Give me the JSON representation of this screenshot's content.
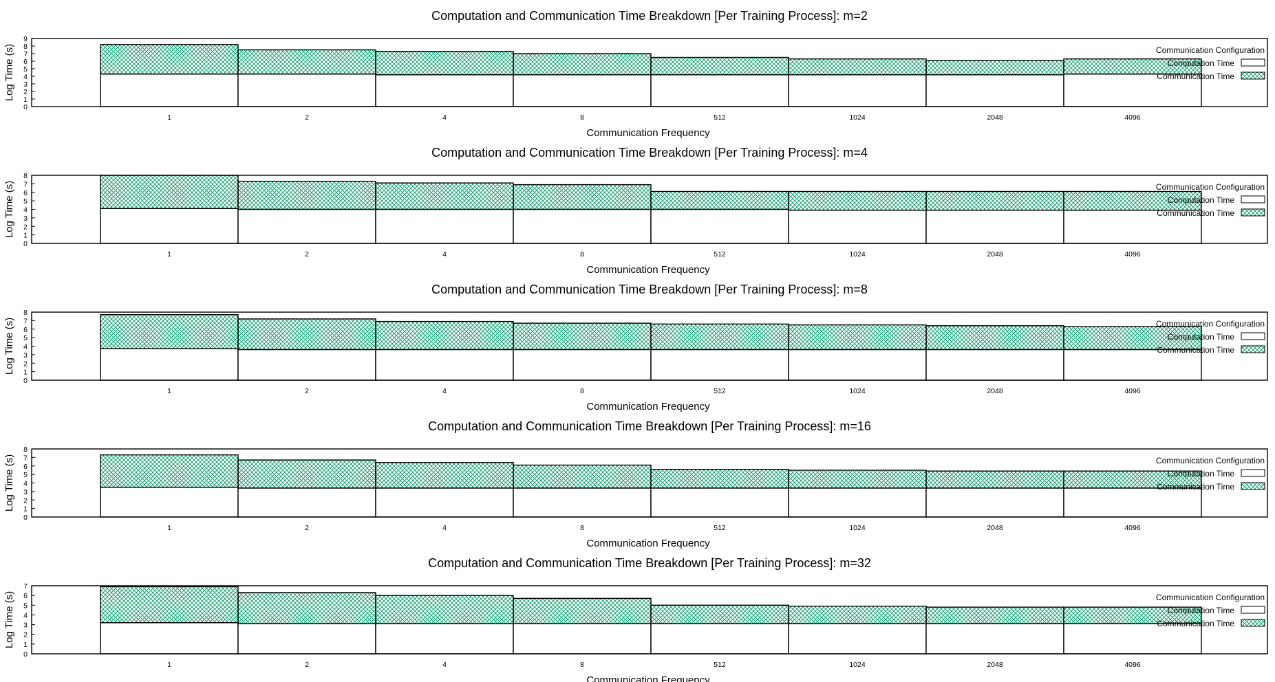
{
  "colors": {
    "communication_fill": "#009966",
    "computation_fill": "#ffffff",
    "stroke": "#000000"
  },
  "chart_data": [
    {
      "type": "bar",
      "stacked": true,
      "title": "Computation and Communication Time Breakdown [Per Training Process]: m=2",
      "xlabel": "Communication Frequency",
      "ylabel": "Log Time (s)",
      "ylim": [
        0,
        9
      ],
      "yticks": [
        0,
        1,
        2,
        3,
        4,
        5,
        6,
        7,
        8,
        9
      ],
      "categories": [
        "1",
        "2",
        "4",
        "8",
        "512",
        "1024",
        "2048",
        "4096"
      ],
      "legend_title": "Communication Configuration",
      "legend_position": "top-right",
      "series": [
        {
          "name": "Computation Time",
          "pattern": "solid",
          "values": [
            4.3,
            4.3,
            4.2,
            4.2,
            4.2,
            4.2,
            4.2,
            4.3
          ]
        },
        {
          "name": "Communication Time",
          "pattern": "crosshatch",
          "values": [
            3.9,
            3.2,
            3.1,
            2.8,
            2.3,
            2.1,
            1.9,
            2.0
          ]
        }
      ]
    },
    {
      "type": "bar",
      "stacked": true,
      "title": "Computation and Communication Time Breakdown [Per Training Process]: m=4",
      "xlabel": "Communication Frequency",
      "ylabel": "Log Time (s)",
      "ylim": [
        0,
        8
      ],
      "yticks": [
        0,
        1,
        2,
        3,
        4,
        5,
        6,
        7,
        8
      ],
      "categories": [
        "1",
        "2",
        "4",
        "8",
        "512",
        "1024",
        "2048",
        "4096"
      ],
      "legend_title": "Communication Configuration",
      "legend_position": "top-right",
      "series": [
        {
          "name": "Computation Time",
          "pattern": "solid",
          "values": [
            4.1,
            4.0,
            4.0,
            4.0,
            4.0,
            3.9,
            3.9,
            3.9
          ]
        },
        {
          "name": "Communication Time",
          "pattern": "crosshatch",
          "values": [
            3.9,
            3.3,
            3.1,
            2.9,
            2.1,
            2.2,
            2.2,
            2.2
          ]
        }
      ]
    },
    {
      "type": "bar",
      "stacked": true,
      "title": "Computation and Communication Time Breakdown [Per Training Process]: m=8",
      "xlabel": "Communication Frequency",
      "ylabel": "Log Time (s)",
      "ylim": [
        0,
        8
      ],
      "yticks": [
        0,
        1,
        2,
        3,
        4,
        5,
        6,
        7,
        8
      ],
      "categories": [
        "1",
        "2",
        "4",
        "8",
        "512",
        "1024",
        "2048",
        "4096"
      ],
      "legend_title": "Communication Configuration",
      "legend_position": "top-right",
      "series": [
        {
          "name": "Computation Time",
          "pattern": "solid",
          "values": [
            3.7,
            3.6,
            3.6,
            3.6,
            3.6,
            3.6,
            3.6,
            3.6
          ]
        },
        {
          "name": "Communication Time",
          "pattern": "crosshatch",
          "values": [
            4.0,
            3.6,
            3.3,
            3.1,
            3.0,
            2.9,
            2.8,
            2.7
          ]
        }
      ]
    },
    {
      "type": "bar",
      "stacked": true,
      "title": "Computation and Communication Time Breakdown [Per Training Process]: m=16",
      "xlabel": "Communication Frequency",
      "ylabel": "Log Time (s)",
      "ylim": [
        0,
        8
      ],
      "yticks": [
        0,
        1,
        2,
        3,
        4,
        5,
        6,
        7,
        8
      ],
      "categories": [
        "1",
        "2",
        "4",
        "8",
        "512",
        "1024",
        "2048",
        "4096"
      ],
      "legend_title": "Communication Configuration",
      "legend_position": "top-right",
      "series": [
        {
          "name": "Computation Time",
          "pattern": "solid",
          "values": [
            3.5,
            3.4,
            3.4,
            3.4,
            3.4,
            3.4,
            3.4,
            3.4
          ]
        },
        {
          "name": "Communication Time",
          "pattern": "crosshatch",
          "values": [
            3.8,
            3.3,
            3.0,
            2.7,
            2.2,
            2.1,
            2.0,
            2.0
          ]
        }
      ]
    },
    {
      "type": "bar",
      "stacked": true,
      "title": "Computation and Communication Time Breakdown [Per Training Process]: m=32",
      "xlabel": "Communication Frequency",
      "ylabel": "Log Time (s)",
      "ylim": [
        0,
        7
      ],
      "yticks": [
        0,
        1,
        2,
        3,
        4,
        5,
        6,
        7
      ],
      "categories": [
        "1",
        "2",
        "4",
        "8",
        "512",
        "1024",
        "2048",
        "4096"
      ],
      "legend_title": "Communication Configuration",
      "legend_position": "top-right",
      "series": [
        {
          "name": "Computation Time",
          "pattern": "solid",
          "values": [
            3.2,
            3.1,
            3.1,
            3.1,
            3.1,
            3.1,
            3.1,
            3.1
          ]
        },
        {
          "name": "Communication Time",
          "pattern": "crosshatch",
          "values": [
            3.7,
            3.2,
            2.9,
            2.6,
            1.9,
            1.8,
            1.7,
            1.7
          ]
        }
      ]
    }
  ]
}
